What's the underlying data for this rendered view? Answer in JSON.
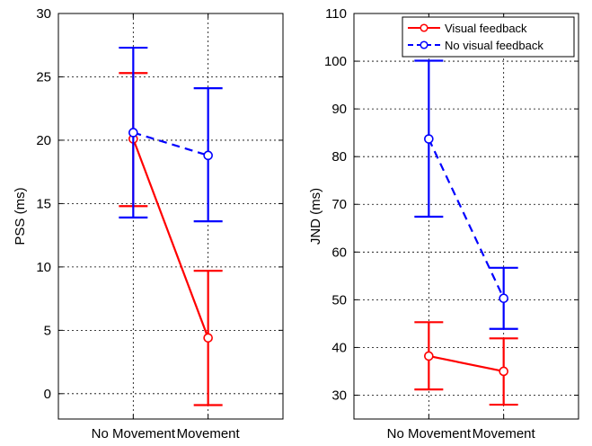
{
  "chart_data": [
    {
      "type": "line",
      "title": "",
      "xlabel": "",
      "ylabel": "PSS (ms)",
      "categories": [
        "No Movement",
        "Movement"
      ],
      "ylim": [
        -2,
        30
      ],
      "yticks": [
        0,
        5,
        10,
        15,
        20,
        25,
        30
      ],
      "grid": true,
      "series": [
        {
          "name": "Visual feedback",
          "color": "#ff0000",
          "dash": "solid",
          "values": [
            20.1,
            4.4
          ],
          "err_low": [
            14.8,
            -0.9
          ],
          "err_high": [
            25.3,
            9.7
          ]
        },
        {
          "name": "No visual feedback",
          "color": "#0000ff",
          "dash": "dashed",
          "values": [
            20.6,
            18.8
          ],
          "err_low": [
            13.9,
            13.6
          ],
          "err_high": [
            27.3,
            24.1
          ]
        }
      ]
    },
    {
      "type": "line",
      "title": "",
      "xlabel": "",
      "ylabel": "JND (ms)",
      "categories": [
        "No Movement",
        "Movement"
      ],
      "ylim": [
        25,
        110
      ],
      "yticks": [
        30,
        40,
        50,
        60,
        70,
        80,
        90,
        100,
        110
      ],
      "grid": true,
      "legend": "top-right",
      "series": [
        {
          "name": "Visual feedback",
          "color": "#ff0000",
          "dash": "solid",
          "values": [
            38.2,
            35.0
          ],
          "err_low": [
            31.2,
            28.0
          ],
          "err_high": [
            45.3,
            41.9
          ]
        },
        {
          "name": "No visual feedback",
          "color": "#0000ff",
          "dash": "dashed",
          "values": [
            83.7,
            50.3
          ],
          "err_low": [
            67.4,
            43.9
          ],
          "err_high": [
            100.1,
            56.7
          ]
        }
      ]
    }
  ]
}
